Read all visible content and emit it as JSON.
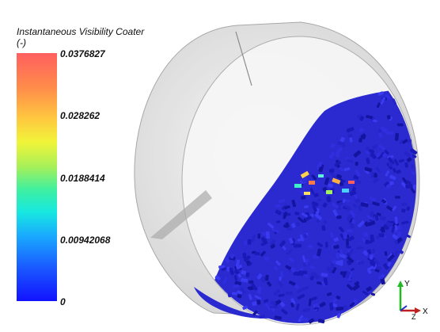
{
  "legend": {
    "title": "Instantaneous Visibility Coater\n(-)",
    "ticks": [
      "0.0376827",
      "0.028262",
      "0.0188414",
      "0.00942068",
      "0"
    ],
    "range": [
      0,
      0.0376827
    ]
  },
  "axes": {
    "y_label": "Y",
    "x_label": "X",
    "z_label": "Z"
  },
  "colors": {
    "particle_low": "#1a1ad6",
    "drum_shell": "#d8d8d8"
  }
}
